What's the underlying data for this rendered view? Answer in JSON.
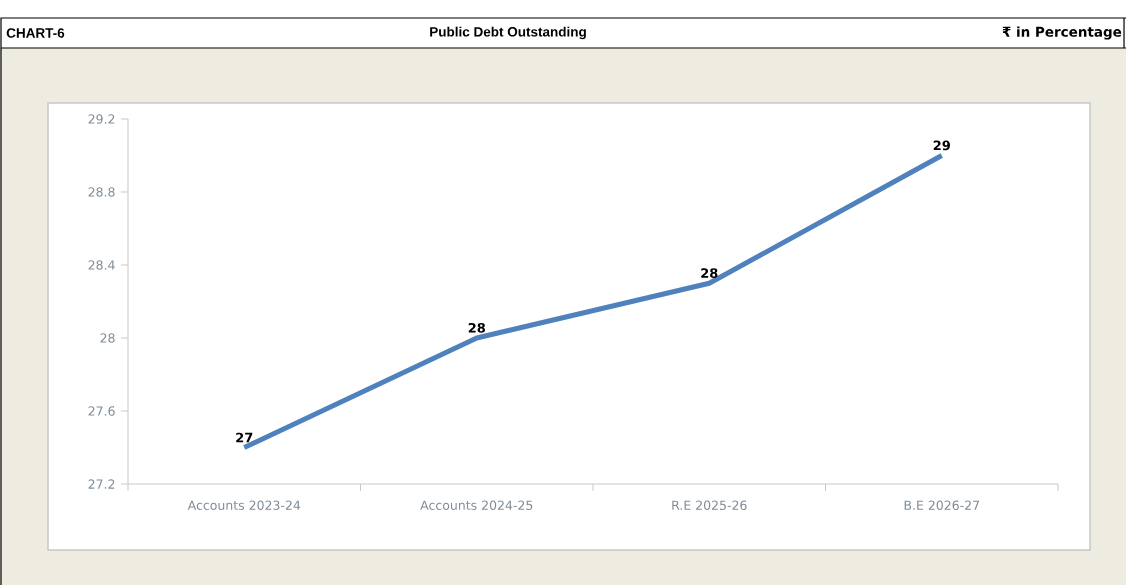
{
  "chart_data": {
    "type": "line",
    "title": "Public Debt Outstanding",
    "annotations": [
      "CHART-6",
      "₹ in Percentage"
    ],
    "categories": [
      "Accounts 2023-24",
      "Accounts 2024-25",
      "R.E 2025-26",
      "B.E 2026-27"
    ],
    "values": [
      27.4,
      28.0,
      28.3,
      29.0
    ],
    "value_labels": [
      "27",
      "28",
      "28",
      "29"
    ],
    "color": "#4f81bd",
    "marker": "none",
    "line_style": "solid",
    "ylim": [
      27.2,
      29.2
    ],
    "yticks": [
      27.2,
      27.6,
      28,
      28.4,
      28.8,
      29.2
    ]
  }
}
